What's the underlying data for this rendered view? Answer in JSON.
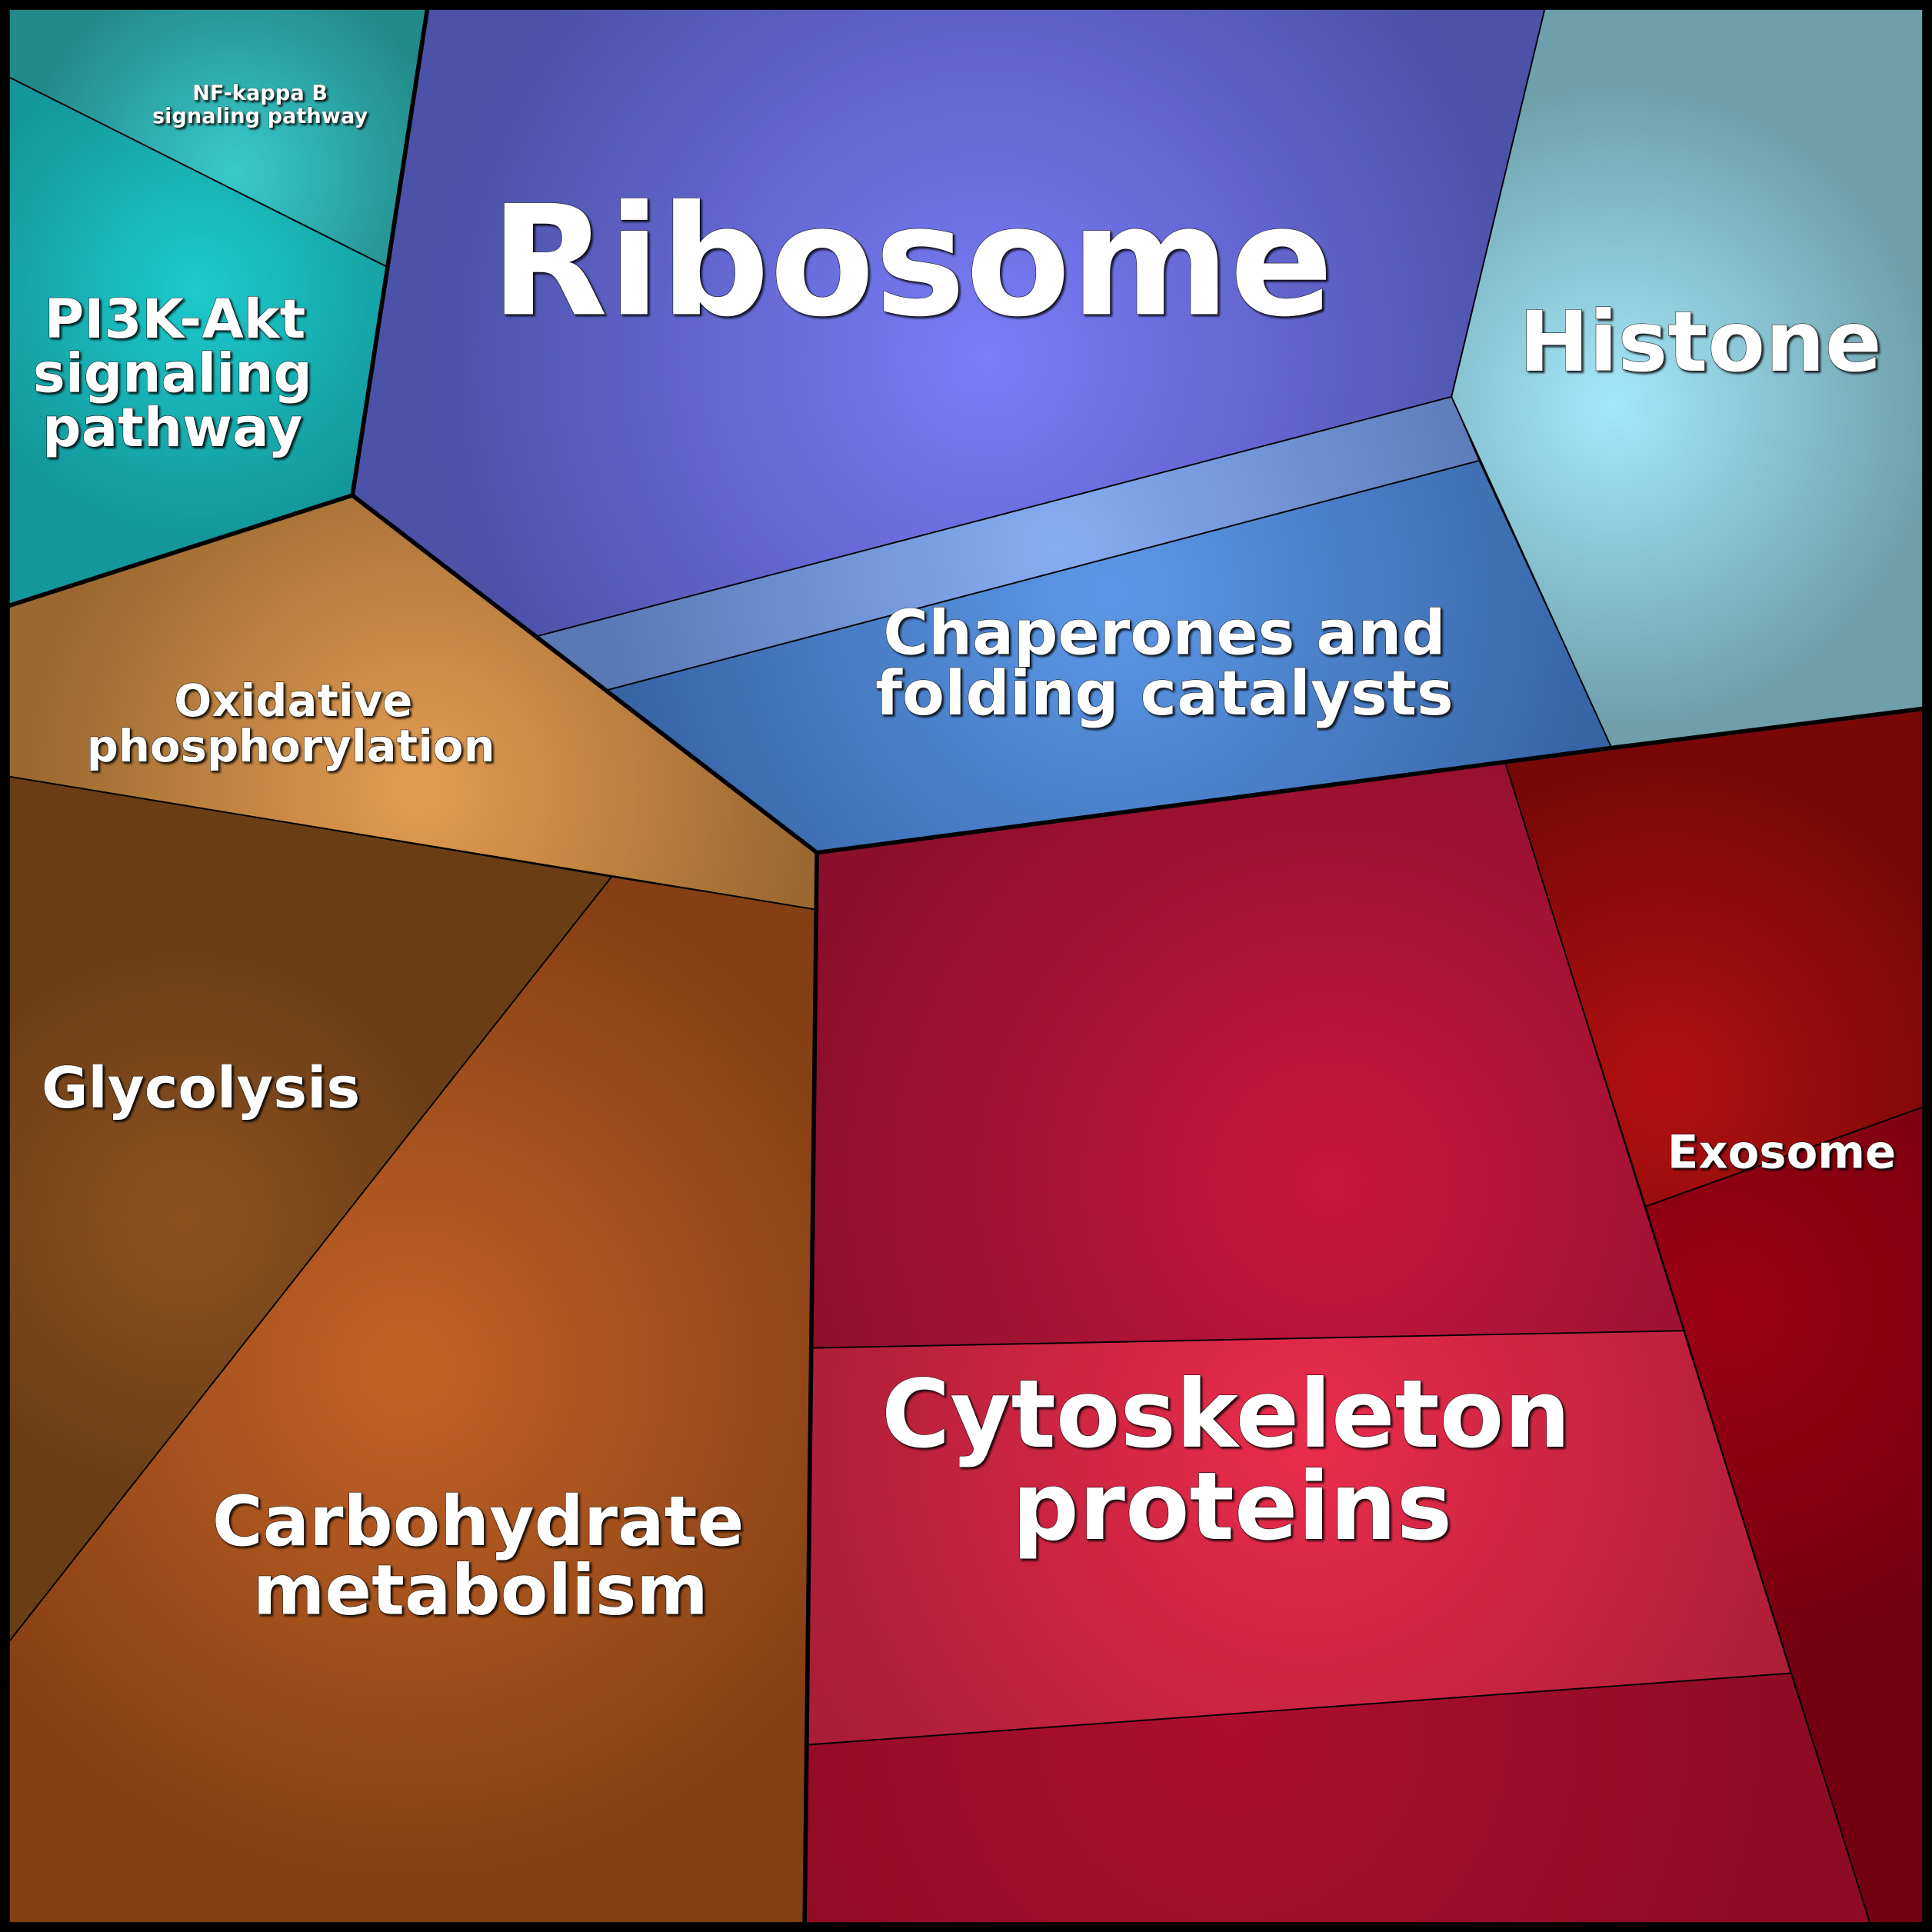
{
  "cells": {
    "nfkb": {
      "label": [
        "NF-kappa B",
        "signaling pathway"
      ],
      "color": "#238a8a",
      "highlight": "#38caca"
    },
    "pi3k": {
      "label": [
        "PI3K-Akt",
        "signaling",
        "pathway"
      ],
      "color": "#13979a",
      "highlight": "#1ccacc"
    },
    "ribosome": {
      "label": [
        "Ribosome"
      ],
      "color": "#4c52a8",
      "highlight": "#7a7cf8"
    },
    "chaperones_upper": {
      "color": "#5a78b4",
      "highlight": "#86aef2"
    },
    "chaperones": {
      "label": [
        "Chaperones and",
        "folding catalysts"
      ],
      "color": "#3563a3",
      "highlight": "#5c98e8"
    },
    "histone": {
      "label": [
        "Histone"
      ],
      "color": "#6e9fab",
      "highlight": "#a4e8fa"
    },
    "oxidative": {
      "label": [
        "Oxidative",
        "phosphorylation"
      ],
      "color": "#9a6830",
      "highlight": "#e49c52"
    },
    "glycolysis": {
      "label": [
        "Glycolysis"
      ],
      "color": "#6b3d15",
      "highlight": "#8c5220"
    },
    "carbohydrate": {
      "label": [
        "Carbohydrate",
        "metabolism"
      ],
      "color": "#843f14",
      "highlight": "#c46226"
    },
    "cyto_top": {
      "color": "#8b0f2c",
      "highlight": "#c8173c"
    },
    "cytoskeleton": {
      "label": [
        "Cytoskeleton",
        "proteins"
      ],
      "color": "#aa1d36",
      "highlight": "#ea2c4c"
    },
    "cyto_bottom": {
      "color": "#8e0b24",
      "highlight": "#ac0e2c"
    },
    "exosome": {
      "label": [
        "Exosome"
      ],
      "color": "#780808",
      "highlight": "#b21010"
    },
    "exosome_lower": {
      "color": "#720010",
      "highlight": "#9c0012"
    }
  }
}
